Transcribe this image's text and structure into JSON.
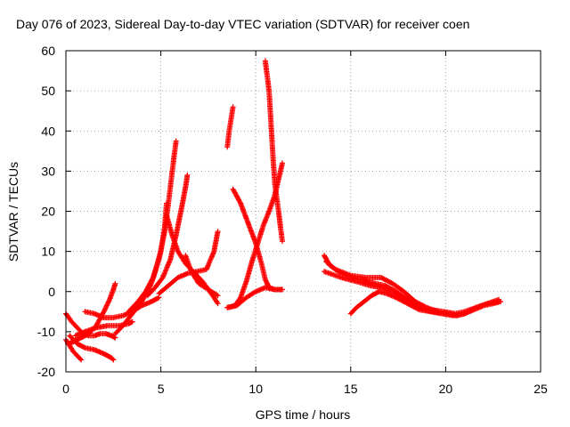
{
  "chart_data": {
    "type": "scatter",
    "title": "Day 076 of 2023, Sidereal Day-to-day VTEC variation (SDTVAR) for receiver coen",
    "xlabel": "GPS time / hours",
    "ylabel": "SDTVAR / TECUs",
    "xlim": [
      0,
      25
    ],
    "ylim": [
      -20,
      60
    ],
    "xticks": [
      "0",
      "5",
      "10",
      "15",
      "20",
      "25"
    ],
    "yticks": [
      "-20",
      "-10",
      "0",
      "10",
      "20",
      "30",
      "40",
      "50",
      "60"
    ],
    "grid": true,
    "marker": "+",
    "series": [
      {
        "name": "track-01",
        "color": "#ff0000",
        "points": [
          [
            0.0,
            -5.5
          ],
          [
            0.3,
            -7.5
          ],
          [
            0.6,
            -9.0
          ],
          [
            0.9,
            -10.5
          ],
          [
            1.2,
            -11.0
          ],
          [
            1.5,
            -11.0
          ],
          [
            1.8,
            -10.5
          ],
          [
            2.1,
            -10.5
          ],
          [
            2.4,
            -11.0
          ],
          [
            2.6,
            -11.5
          ]
        ]
      },
      {
        "name": "track-02",
        "color": "#ff0000",
        "points": [
          [
            0.0,
            -12.0
          ],
          [
            0.2,
            -13.5
          ],
          [
            0.4,
            -15.0
          ],
          [
            0.6,
            -16.0
          ],
          [
            0.8,
            -17.0
          ]
        ]
      },
      {
        "name": "track-03",
        "color": "#ff0000",
        "points": [
          [
            0.1,
            -13.0
          ],
          [
            0.4,
            -12.5
          ],
          [
            0.8,
            -11.5
          ],
          [
            1.2,
            -10.5
          ],
          [
            1.6,
            -8.5
          ],
          [
            2.0,
            -5.0
          ],
          [
            2.3,
            -2.0
          ],
          [
            2.5,
            0.5
          ],
          [
            2.6,
            2.0
          ]
        ]
      },
      {
        "name": "track-04",
        "color": "#ff0000",
        "points": [
          [
            0.2,
            -11.0
          ],
          [
            0.6,
            -13.0
          ],
          [
            1.0,
            -14.0
          ],
          [
            1.5,
            -14.5
          ],
          [
            2.0,
            -15.5
          ],
          [
            2.4,
            -16.5
          ],
          [
            2.5,
            -17.0
          ]
        ]
      },
      {
        "name": "track-05",
        "color": "#ff0000",
        "points": [
          [
            0.5,
            -11.0
          ],
          [
            1.0,
            -10.0
          ],
          [
            1.6,
            -9.0
          ],
          [
            2.2,
            -8.5
          ],
          [
            2.8,
            -8.5
          ],
          [
            3.3,
            -8.0
          ],
          [
            3.5,
            -7.5
          ]
        ]
      },
      {
        "name": "track-06",
        "color": "#ff0000",
        "points": [
          [
            1.0,
            -5.0
          ],
          [
            1.5,
            -5.5
          ],
          [
            2.0,
            -6.5
          ],
          [
            2.5,
            -6.5
          ],
          [
            3.0,
            -6.0
          ],
          [
            3.5,
            -5.0
          ],
          [
            4.0,
            -3.5
          ],
          [
            4.5,
            -2.5
          ],
          [
            4.9,
            -1.5
          ]
        ]
      },
      {
        "name": "track-07",
        "color": "#ff0000",
        "points": [
          [
            2.6,
            -10.5
          ],
          [
            3.0,
            -8.5
          ],
          [
            3.5,
            -5.5
          ],
          [
            4.0,
            -2.5
          ],
          [
            4.5,
            2.0
          ],
          [
            4.9,
            8.0
          ],
          [
            5.2,
            15.0
          ],
          [
            5.4,
            22.0
          ],
          [
            5.6,
            30.0
          ],
          [
            5.8,
            37.5
          ]
        ]
      },
      {
        "name": "track-08",
        "color": "#ff0000",
        "points": [
          [
            3.3,
            -5.0
          ],
          [
            3.8,
            -2.5
          ],
          [
            4.2,
            0.0
          ],
          [
            4.6,
            3.5
          ],
          [
            5.0,
            10.0
          ],
          [
            5.2,
            16.0
          ],
          [
            5.3,
            22.0
          ]
        ]
      },
      {
        "name": "track-09",
        "color": "#ff0000",
        "points": [
          [
            4.3,
            -1.0
          ],
          [
            4.7,
            1.0
          ],
          [
            5.1,
            3.5
          ],
          [
            5.5,
            8.0
          ],
          [
            5.8,
            14.0
          ],
          [
            6.1,
            21.0
          ],
          [
            6.3,
            26.0
          ],
          [
            6.4,
            29.0
          ]
        ]
      },
      {
        "name": "track-10",
        "color": "#ff0000",
        "points": [
          [
            5.3,
            19.0
          ],
          [
            5.6,
            14.0
          ],
          [
            5.9,
            10.0
          ],
          [
            6.3,
            7.0
          ],
          [
            6.8,
            4.5
          ],
          [
            7.2,
            2.5
          ],
          [
            7.5,
            0.5
          ],
          [
            7.8,
            -1.5
          ],
          [
            8.0,
            -3.0
          ]
        ]
      },
      {
        "name": "track-11",
        "color": "#ff0000",
        "points": [
          [
            4.9,
            -0.5
          ],
          [
            5.4,
            1.5
          ],
          [
            5.9,
            3.5
          ],
          [
            6.4,
            4.5
          ],
          [
            6.9,
            5.0
          ],
          [
            7.4,
            5.5
          ],
          [
            7.8,
            10.0
          ],
          [
            8.0,
            15.0
          ]
        ]
      },
      {
        "name": "track-12",
        "color": "#ff0000",
        "points": [
          [
            6.3,
            9.0
          ],
          [
            6.6,
            5.0
          ],
          [
            7.0,
            2.0
          ],
          [
            7.5,
            0.5
          ],
          [
            8.0,
            -1.0
          ]
        ]
      },
      {
        "name": "track-13",
        "color": "#ff0000",
        "points": [
          [
            8.5,
            36.0
          ],
          [
            8.6,
            40.0
          ],
          [
            8.7,
            43.0
          ],
          [
            8.8,
            46.0
          ]
        ]
      },
      {
        "name": "track-14",
        "color": "#ff0000",
        "points": [
          [
            8.8,
            25.5
          ],
          [
            9.2,
            22.0
          ],
          [
            9.6,
            17.0
          ],
          [
            10.0,
            12.0
          ],
          [
            10.3,
            7.0
          ],
          [
            10.5,
            3.0
          ],
          [
            10.7,
            1.0
          ],
          [
            11.0,
            0.5
          ],
          [
            11.4,
            0.5
          ]
        ]
      },
      {
        "name": "track-15",
        "color": "#ff0000",
        "points": [
          [
            8.5,
            -4.0
          ],
          [
            8.9,
            -3.5
          ],
          [
            9.2,
            -1.5
          ],
          [
            9.5,
            2.5
          ],
          [
            9.8,
            7.5
          ],
          [
            10.1,
            12.0
          ],
          [
            10.4,
            16.5
          ],
          [
            10.7,
            20.0
          ],
          [
            11.0,
            24.0
          ],
          [
            11.2,
            28.0
          ],
          [
            11.4,
            32.0
          ]
        ]
      },
      {
        "name": "track-16",
        "color": "#ff0000",
        "points": [
          [
            10.5,
            57.5
          ],
          [
            10.7,
            50.0
          ],
          [
            10.8,
            42.0
          ],
          [
            10.9,
            34.0
          ],
          [
            11.0,
            27.0
          ],
          [
            11.2,
            20.0
          ],
          [
            11.3,
            16.0
          ],
          [
            11.4,
            12.5
          ]
        ]
      },
      {
        "name": "track-17",
        "color": "#ff0000",
        "points": [
          [
            8.5,
            -4.0
          ],
          [
            9.0,
            -3.5
          ],
          [
            9.5,
            -1.5
          ],
          [
            10.0,
            0.0
          ],
          [
            10.5,
            1.0
          ],
          [
            11.0,
            0.5
          ],
          [
            11.4,
            0.5
          ]
        ]
      },
      {
        "name": "track-18",
        "color": "#ff0000",
        "points": [
          [
            13.6,
            9.0
          ],
          [
            13.9,
            6.5
          ],
          [
            14.5,
            4.5
          ],
          [
            15.5,
            3.0
          ],
          [
            16.3,
            2.0
          ],
          [
            16.8,
            1.5
          ],
          [
            17.4,
            0.0
          ],
          [
            18.0,
            -2.0
          ],
          [
            18.6,
            -4.0
          ],
          [
            19.3,
            -5.0
          ],
          [
            20.0,
            -5.5
          ],
          [
            20.6,
            -6.0
          ],
          [
            21.0,
            -5.5
          ],
          [
            21.5,
            -4.5
          ],
          [
            22.0,
            -3.5
          ],
          [
            22.5,
            -3.0
          ],
          [
            22.9,
            -2.5
          ]
        ]
      },
      {
        "name": "track-19",
        "color": "#ff0000",
        "points": [
          [
            13.6,
            5.0
          ],
          [
            14.5,
            3.5
          ],
          [
            15.3,
            2.5
          ],
          [
            16.0,
            1.5
          ],
          [
            16.6,
            1.0
          ],
          [
            17.2,
            0.0
          ],
          [
            17.8,
            -1.5
          ],
          [
            18.5,
            -3.5
          ],
          [
            19.2,
            -4.5
          ],
          [
            19.9,
            -5.0
          ],
          [
            20.5,
            -5.5
          ],
          [
            21.0,
            -5.0
          ],
          [
            21.6,
            -4.0
          ],
          [
            22.2,
            -3.0
          ],
          [
            22.8,
            -2.0
          ]
        ]
      },
      {
        "name": "track-20",
        "color": "#ff0000",
        "points": [
          [
            15.0,
            -5.5
          ],
          [
            15.3,
            -4.0
          ],
          [
            15.7,
            -2.5
          ],
          [
            16.1,
            -1.0
          ],
          [
            16.5,
            0.0
          ],
          [
            16.9,
            -0.5
          ],
          [
            17.4,
            -1.5
          ],
          [
            18.0,
            -3.0
          ],
          [
            18.6,
            -4.5
          ],
          [
            19.2,
            -5.0
          ],
          [
            19.8,
            -5.5
          ],
          [
            20.4,
            -6.0
          ],
          [
            21.0,
            -5.5
          ],
          [
            21.6,
            -4.0
          ],
          [
            22.2,
            -3.0
          ],
          [
            22.8,
            -2.5
          ]
        ]
      },
      {
        "name": "track-21",
        "color": "#ff0000",
        "points": [
          [
            13.7,
            7.5
          ],
          [
            14.2,
            5.5
          ],
          [
            15.0,
            4.0
          ],
          [
            15.8,
            3.5
          ],
          [
            16.6,
            3.5
          ],
          [
            17.2,
            2.0
          ],
          [
            17.8,
            0.0
          ],
          [
            18.4,
            -2.5
          ],
          [
            19.0,
            -4.0
          ],
          [
            19.6,
            -5.0
          ]
        ]
      }
    ]
  }
}
